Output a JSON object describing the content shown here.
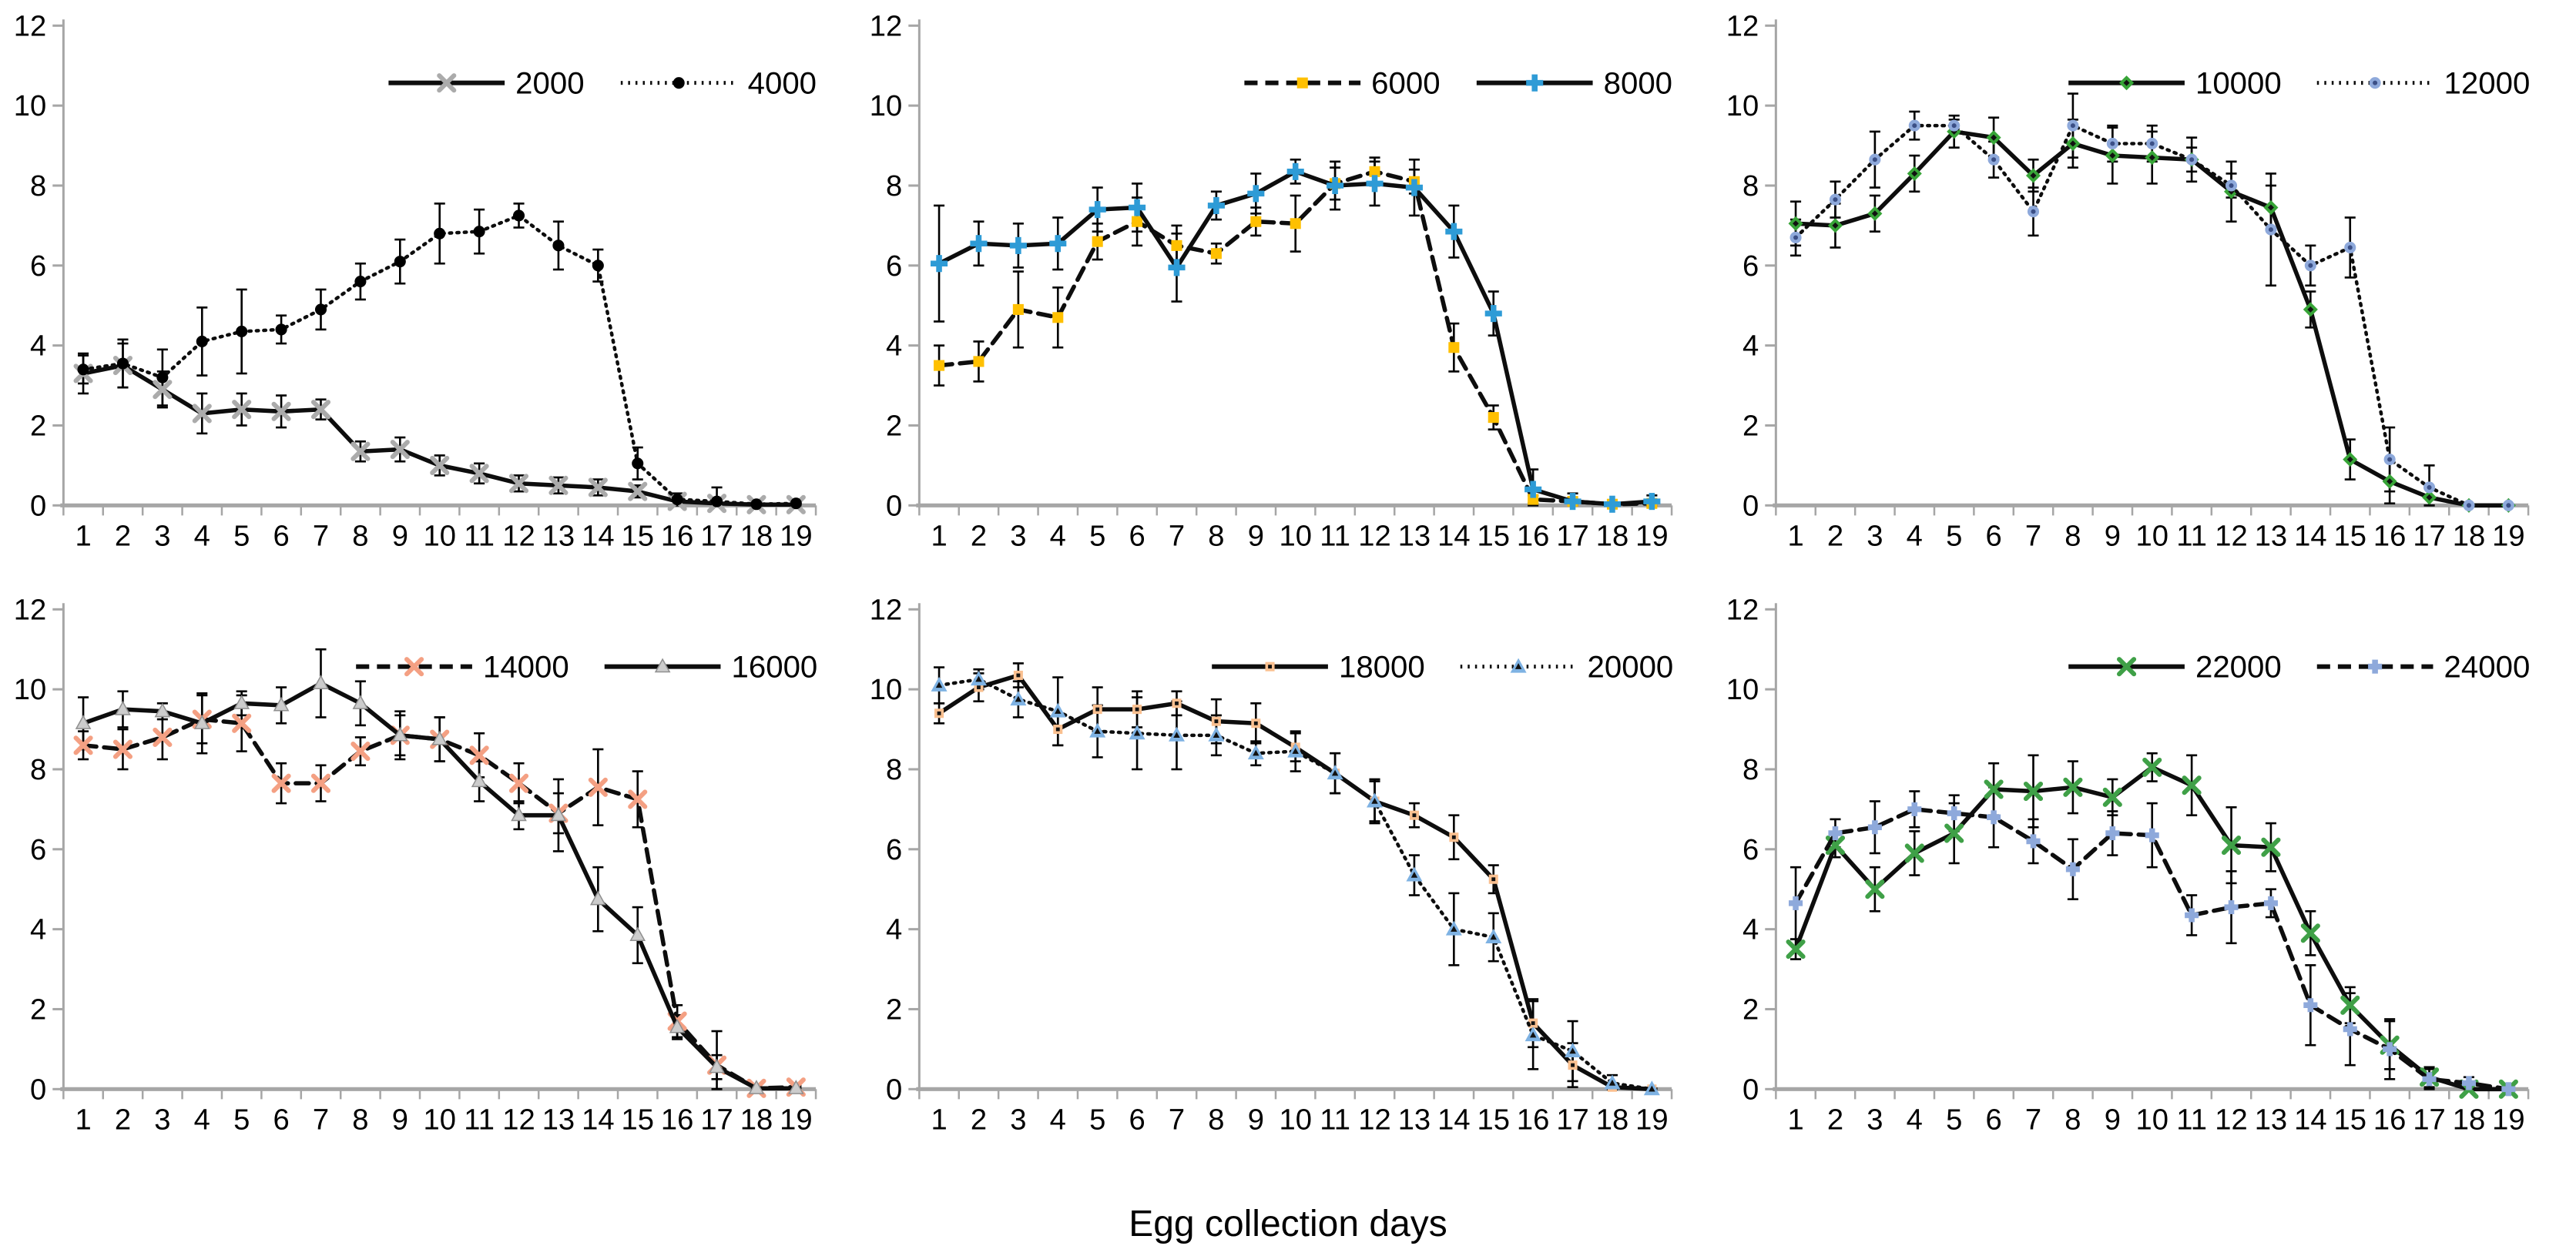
{
  "xlabel": "Egg collection days",
  "axis": {
    "categories": [
      1,
      2,
      3,
      4,
      5,
      6,
      7,
      8,
      9,
      10,
      11,
      12,
      13,
      14,
      15,
      16,
      17,
      18,
      19
    ],
    "ymin": 0,
    "ymax": 12,
    "yticks": [
      0,
      2,
      4,
      6,
      8,
      10,
      12
    ],
    "axis_color": "#a6a6a6",
    "line_color": "#0d0d0d"
  },
  "chart_data": [
    {
      "type": "line",
      "position": "top-left",
      "legend_position": "top-right",
      "xlabel": "",
      "ylabel": "",
      "ylim": [
        0,
        12
      ],
      "grid": false,
      "series": [
        {
          "name": "2000",
          "line": "solid",
          "marker": "x",
          "color": "#ababab",
          "values": [
            3.3,
            3.5,
            2.9,
            2.3,
            2.4,
            2.35,
            2.4,
            1.35,
            1.4,
            1.0,
            0.8,
            0.55,
            0.5,
            0.45,
            0.35,
            0.1,
            0.05,
            0.02,
            0.02
          ],
          "errors": [
            0.5,
            0.55,
            0.45,
            0.5,
            0.4,
            0.4,
            0.25,
            0.25,
            0.3,
            0.25,
            0.25,
            0.2,
            0.2,
            0.2,
            0.15,
            0.1,
            0.08,
            0.05,
            0.05
          ]
        },
        {
          "name": "4000",
          "line": "dotted",
          "marker": "circle",
          "color": "#000000",
          "values": [
            3.4,
            3.55,
            3.2,
            4.1,
            4.35,
            4.4,
            4.9,
            5.6,
            6.1,
            6.8,
            6.85,
            7.25,
            6.5,
            6.0,
            1.05,
            0.15,
            0.1,
            0.03,
            0.05
          ],
          "errors": [
            0.35,
            0.6,
            0.7,
            0.85,
            1.05,
            0.35,
            0.5,
            0.45,
            0.55,
            0.75,
            0.55,
            0.3,
            0.6,
            0.4,
            0.4,
            0.15,
            0.35,
            0.05,
            0.1
          ]
        }
      ]
    },
    {
      "type": "line",
      "position": "top-middle",
      "legend_position": "top-right",
      "xlabel": "",
      "ylabel": "",
      "ylim": [
        0,
        12
      ],
      "grid": false,
      "series": [
        {
          "name": "6000",
          "line": "dashed",
          "marker": "square",
          "color": "#ffc000",
          "values": [
            3.5,
            3.6,
            4.9,
            4.7,
            6.6,
            7.1,
            6.5,
            6.3,
            7.1,
            7.05,
            8.05,
            8.35,
            8.1,
            3.95,
            2.2,
            0.15,
            0.1,
            0.03,
            0.05
          ],
          "errors": [
            0.5,
            0.5,
            0.95,
            0.75,
            0.45,
            0.6,
            0.5,
            0.25,
            0.35,
            0.7,
            0.4,
            0.35,
            0.3,
            0.6,
            0.3,
            0.1,
            0.1,
            0.05,
            0.05
          ]
        },
        {
          "name": "8000",
          "line": "solid",
          "marker": "plus",
          "color": "#2e9bd6",
          "size": 11,
          "values": [
            6.05,
            6.55,
            6.5,
            6.55,
            7.4,
            7.45,
            5.95,
            7.5,
            7.8,
            8.35,
            8.0,
            8.05,
            7.95,
            6.85,
            4.8,
            0.4,
            0.1,
            0.03,
            0.1
          ],
          "errors": [
            1.45,
            0.55,
            0.55,
            0.65,
            0.55,
            0.6,
            0.85,
            0.35,
            0.5,
            0.3,
            0.6,
            0.55,
            0.7,
            0.65,
            0.55,
            0.5,
            0.2,
            0.05,
            0.15
          ]
        }
      ]
    },
    {
      "type": "line",
      "position": "top-right",
      "legend_position": "top-right",
      "xlabel": "",
      "ylabel": "",
      "ylim": [
        0,
        12
      ],
      "grid": false,
      "series": [
        {
          "name": "10000",
          "line": "solid",
          "marker": "diamond",
          "color": "#37a437",
          "inner": "#111111",
          "values": [
            7.05,
            7.0,
            7.3,
            8.3,
            9.35,
            9.2,
            8.25,
            9.05,
            8.75,
            8.7,
            8.65,
            7.85,
            7.45,
            4.9,
            1.15,
            0.6,
            0.2,
            0.0,
            0.0
          ],
          "errors": [
            0.55,
            0.55,
            0.45,
            0.45,
            0.4,
            0.5,
            0.4,
            0.6,
            0.7,
            0.65,
            0.55,
            0.75,
            0.55,
            0.45,
            0.5,
            0.55,
            0.25,
            0.02,
            0.02
          ]
        },
        {
          "name": "12000",
          "line": "dotted",
          "marker": "circle",
          "color": "#8ea9db",
          "inner": "#3b4f86",
          "values": [
            6.7,
            7.65,
            8.65,
            9.5,
            9.5,
            8.65,
            7.35,
            9.5,
            9.05,
            9.05,
            8.65,
            8.0,
            6.9,
            6.0,
            6.45,
            1.15,
            0.45,
            0.0,
            0.0
          ],
          "errors": [
            0.45,
            0.45,
            0.7,
            0.35,
            0.15,
            0.45,
            0.6,
            0.8,
            0.45,
            0.45,
            0.3,
            0.3,
            1.4,
            0.5,
            0.75,
            0.8,
            0.55,
            0.02,
            0.02
          ]
        }
      ]
    },
    {
      "type": "line",
      "position": "bottom-left",
      "legend_position": "top-right",
      "xlabel": "",
      "ylabel": "",
      "ylim": [
        0,
        12
      ],
      "grid": false,
      "series": [
        {
          "name": "14000",
          "line": "dashed",
          "marker": "x",
          "color": "#f4a083",
          "values": [
            8.6,
            8.5,
            8.8,
            9.25,
            9.15,
            7.65,
            7.65,
            8.45,
            8.85,
            8.75,
            8.35,
            7.65,
            6.9,
            7.55,
            7.25,
            1.7,
            0.6,
            0.02,
            0.05
          ],
          "errors": [
            0.35,
            0.5,
            0.55,
            0.6,
            0.7,
            0.5,
            0.45,
            0.35,
            0.5,
            0.55,
            0.55,
            0.5,
            0.5,
            0.95,
            0.7,
            0.4,
            0.85,
            0.03,
            0.05
          ]
        },
        {
          "name": "16000",
          "line": "solid",
          "marker": "triangle",
          "color": "#cccccc",
          "stroke": "#8f8f8f",
          "values": [
            9.15,
            9.5,
            9.45,
            9.15,
            9.65,
            9.6,
            10.15,
            9.65,
            8.85,
            8.75,
            7.7,
            6.85,
            6.85,
            4.75,
            3.85,
            1.55,
            0.55,
            0.02,
            0.02
          ],
          "errors": [
            0.65,
            0.45,
            0.2,
            0.75,
            0.3,
            0.45,
            0.85,
            0.55,
            0.6,
            0.55,
            0.5,
            0.35,
            0.9,
            0.8,
            0.7,
            0.3,
            0.3,
            0.03,
            0.03
          ]
        }
      ]
    },
    {
      "type": "line",
      "position": "bottom-middle",
      "legend_position": "top-right",
      "xlabel": "",
      "ylabel": "",
      "ylim": [
        0,
        12
      ],
      "grid": false,
      "series": [
        {
          "name": "18000",
          "line": "solid",
          "marker": "square",
          "color": "#fac090",
          "inner": "#111111",
          "size": 6,
          "values": [
            9.4,
            10.05,
            10.35,
            9.0,
            9.5,
            9.5,
            9.65,
            9.2,
            9.15,
            8.55,
            7.9,
            7.2,
            6.85,
            6.3,
            5.25,
            1.65,
            0.6,
            0.05,
            0.0
          ],
          "errors": [
            0.25,
            0.35,
            0.3,
            0.4,
            0.55,
            0.45,
            0.3,
            0.55,
            0.5,
            0.35,
            0.5,
            0.55,
            0.3,
            0.55,
            0.35,
            0.6,
            0.55,
            0.1,
            0.02
          ]
        },
        {
          "name": "20000",
          "line": "dotted",
          "marker": "triangle",
          "color": "#7eb2e3",
          "inner": "#111111",
          "size": 11,
          "values": [
            10.1,
            10.25,
            9.75,
            9.45,
            8.95,
            8.9,
            8.85,
            8.85,
            8.4,
            8.45,
            7.9,
            7.2,
            5.35,
            4.0,
            3.8,
            1.35,
            0.95,
            0.15,
            0.0
          ],
          "errors": [
            0.45,
            0.25,
            0.45,
            0.85,
            0.65,
            0.9,
            0.85,
            0.5,
            0.3,
            0.5,
            0.5,
            0.5,
            0.5,
            0.9,
            0.6,
            0.85,
            0.75,
            0.2,
            0.02
          ]
        }
      ]
    },
    {
      "type": "line",
      "position": "bottom-right",
      "legend_position": "top-right",
      "xlabel": "",
      "ylabel": "",
      "ylim": [
        0,
        12
      ],
      "grid": false,
      "series": [
        {
          "name": "22000",
          "line": "solid",
          "marker": "x",
          "color": "#3fa047",
          "values": [
            3.5,
            6.1,
            5.0,
            5.9,
            6.4,
            7.5,
            7.45,
            7.55,
            7.3,
            8.05,
            7.6,
            6.1,
            6.05,
            3.9,
            2.1,
            1.1,
            0.3,
            0.0,
            0.0
          ],
          "errors": [
            0.25,
            0.3,
            0.55,
            0.55,
            0.75,
            0.65,
            0.9,
            0.65,
            0.45,
            0.35,
            0.75,
            0.95,
            0.6,
            0.55,
            0.45,
            0.6,
            0.25,
            0.02,
            0.02
          ]
        },
        {
          "name": "24000",
          "line": "dashed",
          "marker": "plus",
          "color": "#8ea9db",
          "size": 9,
          "values": [
            4.65,
            6.4,
            6.55,
            7.0,
            6.9,
            6.8,
            6.2,
            5.5,
            6.4,
            6.35,
            4.35,
            4.55,
            4.65,
            2.1,
            1.5,
            1.0,
            0.25,
            0.15,
            0.0
          ],
          "errors": [
            0.9,
            0.35,
            0.65,
            0.45,
            0.45,
            0.75,
            0.55,
            0.75,
            0.55,
            0.8,
            0.5,
            0.9,
            0.35,
            1.0,
            0.9,
            0.75,
            0.25,
            0.15,
            0.02
          ]
        }
      ]
    }
  ]
}
